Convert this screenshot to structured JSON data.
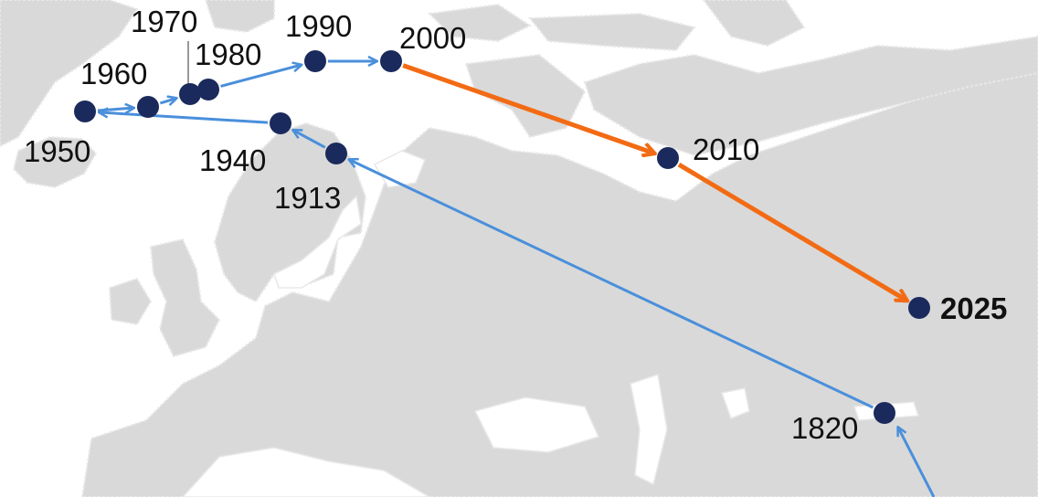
{
  "colors": {
    "land": "#d9d9d9",
    "coast": "#e8e8e8",
    "water": "#ffffff",
    "historic_path": "#4a8fdb",
    "recent_path": "#f26b14",
    "point": "#1b2a5c"
  },
  "points": [
    {
      "id": "1820",
      "label": "1820",
      "bold": false
    },
    {
      "id": "1913",
      "label": "1913",
      "bold": false
    },
    {
      "id": "1940",
      "label": "1940",
      "bold": false
    },
    {
      "id": "1950",
      "label": "1950",
      "bold": false
    },
    {
      "id": "1960",
      "label": "1960",
      "bold": false
    },
    {
      "id": "1970",
      "label": "1970",
      "bold": false
    },
    {
      "id": "1980",
      "label": "1980",
      "bold": false
    },
    {
      "id": "1990",
      "label": "1990",
      "bold": false
    },
    {
      "id": "2000",
      "label": "2000",
      "bold": false
    },
    {
      "id": "2010",
      "label": "2010",
      "bold": false
    },
    {
      "id": "2025",
      "label": "2025",
      "bold": true
    }
  ],
  "path_order": [
    "1820",
    "1913",
    "1940",
    "1950",
    "1960",
    "1970",
    "1980",
    "1990",
    "2000",
    "2010",
    "2025"
  ],
  "recent_segments_from": "2000"
}
